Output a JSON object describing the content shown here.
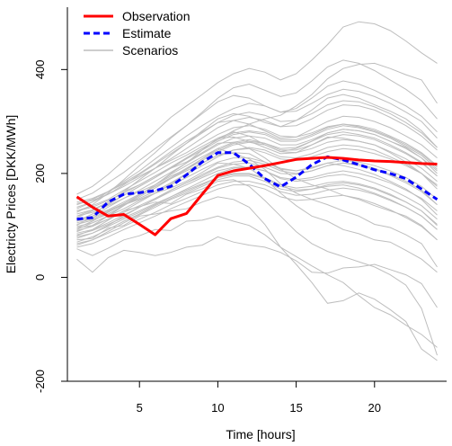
{
  "chart_data": {
    "type": "line",
    "xlabel": "Time [hours]",
    "ylabel": "Electricty Prices [DKK/MWh]",
    "xlim": [
      0.4,
      24.6
    ],
    "ylim": [
      -200,
      520
    ],
    "x_ticks": [
      5,
      10,
      15,
      20
    ],
    "y_ticks": [
      -200,
      0,
      200,
      400
    ],
    "x_tick_labels": [
      "5",
      "10",
      "15",
      "20"
    ],
    "y_tick_labels": [
      "-200",
      "0",
      "200",
      "400"
    ],
    "legend": {
      "placement": "top-left",
      "entries": [
        {
          "label": "Observation",
          "color": "#ff0000",
          "style": "solid"
        },
        {
          "label": "Estimate",
          "color": "#0000ff",
          "style": "dashed"
        },
        {
          "label": "Scenarios",
          "color": "#bebebe",
          "style": "solid"
        }
      ]
    },
    "x": [
      1,
      2,
      3,
      4,
      5,
      6,
      7,
      8,
      9,
      10,
      11,
      12,
      13,
      14,
      15,
      16,
      17,
      18,
      19,
      20,
      21,
      22,
      23,
      24
    ],
    "series": [
      {
        "name": "Observation",
        "color": "#ff0000",
        "values": [
          155,
          135,
          118,
          121,
          102,
          82,
          113,
          123,
          160,
          196,
          205,
          210,
          215,
          221,
          227,
          229,
          231,
          229,
          226,
          224,
          223,
          221,
          219,
          218
        ]
      },
      {
        "name": "Estimate",
        "color": "#0000ff",
        "values": [
          112,
          115,
          145,
          160,
          163,
          167,
          175,
          197,
          222,
          240,
          240,
          218,
          190,
          174,
          193,
          217,
          232,
          226,
          217,
          207,
          200,
          190,
          170,
          150
        ]
      }
    ],
    "scenarios": [
      [
        35,
        10,
        38,
        52,
        48,
        42,
        48,
        58,
        62,
        78,
        68,
        62,
        58,
        48,
        32,
        10,
        8,
        18,
        20,
        25,
        15,
        5,
        -12,
        -58
      ],
      [
        55,
        42,
        56,
        72,
        80,
        92,
        90,
        108,
        110,
        118,
        108,
        100,
        82,
        58,
        40,
        22,
        5,
        -10,
        -35,
        -58,
        -72,
        -92,
        -110,
        -135
      ],
      [
        72,
        75,
        95,
        100,
        118,
        122,
        128,
        132,
        145,
        155,
        150,
        135,
        102,
        58,
        25,
        -10,
        -50,
        -45,
        -30,
        -42,
        -62,
        -85,
        -138,
        -160
      ],
      [
        80,
        92,
        110,
        128,
        136,
        145,
        142,
        160,
        170,
        185,
        188,
        175,
        148,
        118,
        88,
        65,
        50,
        40,
        30,
        20,
        5,
        -15,
        -60,
        -150
      ],
      [
        92,
        105,
        118,
        140,
        150,
        162,
        172,
        185,
        202,
        220,
        218,
        210,
        190,
        162,
        138,
        118,
        108,
        92,
        84,
        72,
        68,
        52,
        35,
        10
      ],
      [
        100,
        118,
        135,
        152,
        165,
        178,
        195,
        208,
        228,
        248,
        238,
        228,
        208,
        180,
        162,
        150,
        140,
        128,
        118,
        102,
        96,
        82,
        65,
        20
      ],
      [
        118,
        130,
        145,
        165,
        178,
        195,
        210,
        222,
        240,
        258,
        260,
        248,
        230,
        208,
        190,
        178,
        170,
        158,
        150,
        138,
        128,
        118,
        100,
        72
      ],
      [
        105,
        112,
        126,
        140,
        152,
        166,
        182,
        200,
        220,
        235,
        240,
        238,
        222,
        210,
        205,
        212,
        220,
        215,
        208,
        198,
        185,
        170,
        150,
        120
      ],
      [
        128,
        138,
        150,
        168,
        185,
        202,
        220,
        235,
        252,
        268,
        270,
        262,
        250,
        238,
        240,
        255,
        270,
        268,
        262,
        255,
        240,
        222,
        200,
        170
      ],
      [
        95,
        108,
        125,
        142,
        158,
        178,
        200,
        220,
        245,
        268,
        280,
        272,
        255,
        242,
        248,
        262,
        278,
        285,
        282,
        275,
        262,
        250,
        230,
        200
      ],
      [
        140,
        150,
        165,
        182,
        200,
        220,
        242,
        262,
        280,
        298,
        302,
        295,
        282,
        268,
        270,
        285,
        300,
        310,
        308,
        300,
        288,
        272,
        255,
        230
      ],
      [
        115,
        128,
        145,
        165,
        188,
        210,
        235,
        258,
        282,
        305,
        315,
        310,
        298,
        290,
        302,
        322,
        345,
        352,
        345,
        332,
        320,
        305,
        282,
        250
      ],
      [
        150,
        162,
        182,
        202,
        225,
        248,
        270,
        292,
        315,
        338,
        350,
        345,
        330,
        318,
        325,
        345,
        368,
        378,
        372,
        360,
        345,
        330,
        310,
        280
      ],
      [
        125,
        140,
        162,
        188,
        215,
        240,
        268,
        292,
        318,
        345,
        365,
        372,
        360,
        348,
        355,
        378,
        405,
        418,
        412,
        398,
        380,
        362,
        340,
        305
      ],
      [
        160,
        175,
        198,
        225,
        252,
        280,
        308,
        330,
        352,
        375,
        392,
        402,
        395,
        380,
        392,
        418,
        448,
        482,
        492,
        488,
        475,
        455,
        432,
        412
      ],
      [
        108,
        122,
        140,
        158,
        175,
        192,
        210,
        230,
        248,
        265,
        282,
        295,
        305,
        312,
        330,
        352,
        382,
        402,
        410,
        412,
        402,
        390,
        380,
        335
      ],
      [
        132,
        145,
        165,
        185,
        205,
        228,
        250,
        272,
        292,
        310,
        325,
        335,
        330,
        318,
        320,
        335,
        352,
        362,
        358,
        348,
        335,
        318,
        300,
        268
      ],
      [
        88,
        100,
        118,
        138,
        158,
        178,
        198,
        215,
        232,
        248,
        260,
        265,
        258,
        248,
        250,
        262,
        275,
        280,
        275,
        268,
        255,
        240,
        222,
        195
      ],
      [
        75,
        85,
        100,
        118,
        135,
        150,
        168,
        182,
        195,
        210,
        218,
        220,
        212,
        200,
        198,
        205,
        215,
        220,
        218,
        210,
        198,
        185,
        168,
        140
      ],
      [
        62,
        72,
        88,
        105,
        120,
        135,
        150,
        162,
        175,
        188,
        195,
        195,
        185,
        170,
        165,
        170,
        178,
        182,
        178,
        170,
        158,
        145,
        128,
        100
      ],
      [
        110,
        118,
        130,
        145,
        160,
        175,
        190,
        205,
        220,
        235,
        245,
        248,
        240,
        228,
        225,
        232,
        242,
        248,
        245,
        238,
        228,
        215,
        200,
        178
      ],
      [
        85,
        92,
        105,
        120,
        135,
        150,
        165,
        178,
        192,
        205,
        212,
        212,
        205,
        192,
        188,
        192,
        200,
        205,
        200,
        192,
        182,
        168,
        152,
        128
      ],
      [
        145,
        152,
        165,
        180,
        195,
        210,
        225,
        240,
        258,
        275,
        288,
        292,
        285,
        272,
        270,
        278,
        290,
        295,
        290,
        282,
        270,
        255,
        238,
        212
      ],
      [
        98,
        105,
        118,
        132,
        148,
        162,
        178,
        192,
        208,
        222,
        230,
        230,
        222,
        208,
        205,
        210,
        220,
        225,
        222,
        215,
        205,
        192,
        175,
        150
      ],
      [
        68,
        78,
        92,
        108,
        122,
        138,
        152,
        165,
        178,
        192,
        200,
        200,
        192,
        178,
        172,
        175,
        182,
        185,
        180,
        172,
        160,
        145,
        128,
        102
      ],
      [
        122,
        130,
        142,
        158,
        175,
        192,
        210,
        228,
        245,
        262,
        275,
        280,
        275,
        262,
        262,
        272,
        285,
        292,
        288,
        280,
        268,
        252,
        235,
        208
      ],
      [
        82,
        90,
        102,
        115,
        128,
        142,
        155,
        168,
        180,
        192,
        198,
        198,
        190,
        175,
        168,
        170,
        175,
        178,
        172,
        162,
        150,
        135,
        118,
        92
      ],
      [
        135,
        145,
        160,
        178,
        198,
        218,
        238,
        258,
        278,
        298,
        312,
        318,
        312,
        300,
        302,
        315,
        332,
        340,
        338,
        328,
        315,
        298,
        278,
        250
      ],
      [
        58,
        65,
        78,
        92,
        105,
        118,
        132,
        145,
        158,
        170,
        178,
        178,
        170,
        155,
        148,
        150,
        155,
        158,
        152,
        142,
        130,
        115,
        98,
        72
      ],
      [
        102,
        110,
        122,
        138,
        155,
        172,
        190,
        208,
        225,
        242,
        255,
        260,
        255,
        242,
        240,
        248,
        260,
        265,
        262,
        255,
        242,
        228,
        210,
        185
      ],
      [
        90,
        98,
        112,
        128,
        145,
        162,
        180,
        198,
        215,
        232,
        245,
        250,
        245,
        232,
        230,
        238,
        250,
        255,
        252,
        245,
        232,
        218,
        200,
        175
      ],
      [
        118,
        125,
        138,
        152,
        168,
        185,
        202,
        220,
        238,
        255,
        268,
        272,
        268,
        255,
        255,
        265,
        278,
        285,
        282,
        275,
        262,
        248,
        230,
        205
      ],
      [
        78,
        85,
        98,
        112,
        125,
        140,
        155,
        170,
        185,
        200,
        210,
        212,
        205,
        190,
        185,
        188,
        195,
        198,
        192,
        182,
        170,
        155,
        138,
        112
      ],
      [
        128,
        135,
        148,
        162,
        178,
        195,
        212,
        230,
        248,
        265,
        278,
        282,
        278,
        265,
        265,
        275,
        288,
        295,
        292,
        285,
        272,
        258,
        240,
        215
      ],
      [
        65,
        72,
        85,
        98,
        112,
        125,
        140,
        152,
        165,
        178,
        185,
        185,
        178,
        165,
        158,
        160,
        168,
        172,
        168,
        160,
        148,
        135,
        118,
        92
      ],
      [
        108,
        115,
        128,
        142,
        158,
        175,
        192,
        210,
        228,
        245,
        258,
        262,
        258,
        245,
        245,
        255,
        268,
        275,
        272,
        265,
        252,
        238,
        220,
        195
      ],
      [
        95,
        100,
        112,
        125,
        138,
        152,
        168,
        182,
        198,
        212,
        222,
        225,
        218,
        205,
        200,
        205,
        215,
        220,
        215,
        208,
        196,
        182,
        165,
        140
      ],
      [
        142,
        148,
        160,
        175,
        192,
        210,
        228,
        248,
        268,
        288,
        302,
        308,
        302,
        290,
        292,
        305,
        322,
        332,
        330,
        322,
        308,
        292,
        272,
        245
      ]
    ]
  }
}
